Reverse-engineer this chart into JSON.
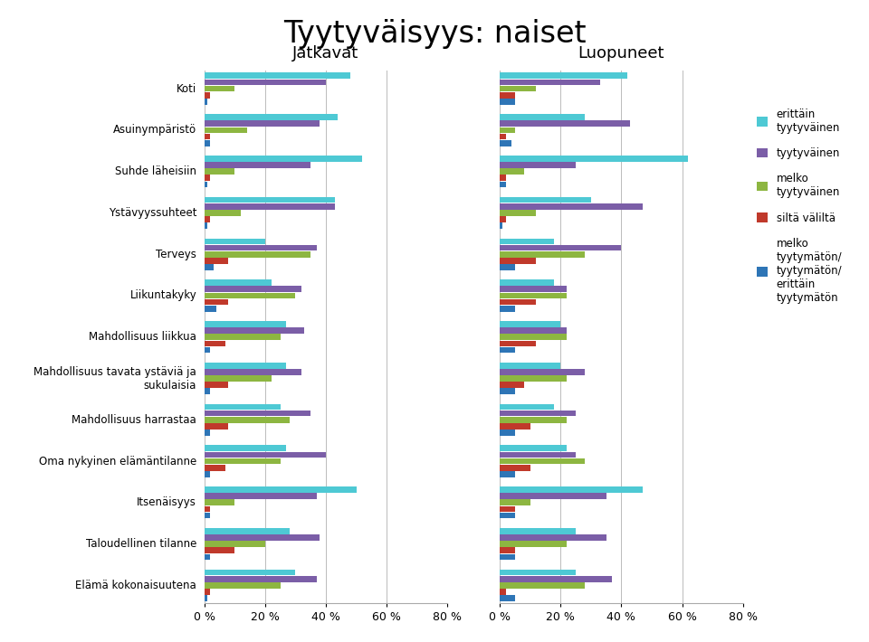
{
  "title": "Tyytyväisyys: naiset",
  "subtitle_left": "Jatkavat",
  "subtitle_right": "Luopuneet",
  "categories": [
    "Koti",
    "Asuinympäristö",
    "Suhde läheisiin",
    "Ystävyyssuhteet",
    "Terveys",
    "Liikuntakyky",
    "Mahdollisuus liikkua",
    "Mahdollisuus tavata ystäviä ja\nsukulaisia",
    "Mahdollisuus harrastaa",
    "Oma nykyinen elämäntilanne",
    "Itsenäisyys",
    "Taloudellinen tilanne",
    "Elämä kokonaisuutena"
  ],
  "colors": [
    "#4EC9D4",
    "#7B5EA7",
    "#8DB641",
    "#C0392B",
    "#2E75B6"
  ],
  "series_labels": [
    "erittäin\ntyytyväinen",
    "tyytyväinen",
    "melko\ntyytyväinen",
    "siltä väliltä",
    "melko\ntyytymätön/\ntyytymätön/\nerittäin\ntyytymätön"
  ],
  "jatkavat": [
    [
      48,
      40,
      10,
      2,
      1
    ],
    [
      44,
      38,
      14,
      2,
      2
    ],
    [
      52,
      35,
      10,
      2,
      1
    ],
    [
      43,
      43,
      12,
      2,
      1
    ],
    [
      20,
      37,
      35,
      8,
      3
    ],
    [
      22,
      32,
      30,
      8,
      4
    ],
    [
      27,
      33,
      25,
      7,
      2
    ],
    [
      27,
      32,
      22,
      8,
      2
    ],
    [
      25,
      35,
      28,
      8,
      2
    ],
    [
      27,
      40,
      25,
      7,
      2
    ],
    [
      50,
      37,
      10,
      2,
      2
    ],
    [
      28,
      38,
      20,
      10,
      2
    ],
    [
      30,
      37,
      25,
      2,
      1
    ]
  ],
  "luopuneet": [
    [
      42,
      33,
      12,
      5,
      5
    ],
    [
      28,
      43,
      5,
      2,
      4
    ],
    [
      62,
      25,
      8,
      2,
      2
    ],
    [
      30,
      47,
      12,
      2,
      1
    ],
    [
      18,
      40,
      28,
      12,
      5
    ],
    [
      18,
      22,
      22,
      12,
      5
    ],
    [
      20,
      22,
      22,
      12,
      5
    ],
    [
      20,
      28,
      22,
      8,
      5
    ],
    [
      18,
      25,
      22,
      10,
      5
    ],
    [
      22,
      25,
      28,
      10,
      5
    ],
    [
      47,
      35,
      10,
      5,
      5
    ],
    [
      25,
      35,
      22,
      5,
      5
    ],
    [
      25,
      37,
      28,
      2,
      5
    ]
  ],
  "xtick_vals": [
    0,
    20,
    40,
    60,
    80
  ],
  "xlim": 80
}
